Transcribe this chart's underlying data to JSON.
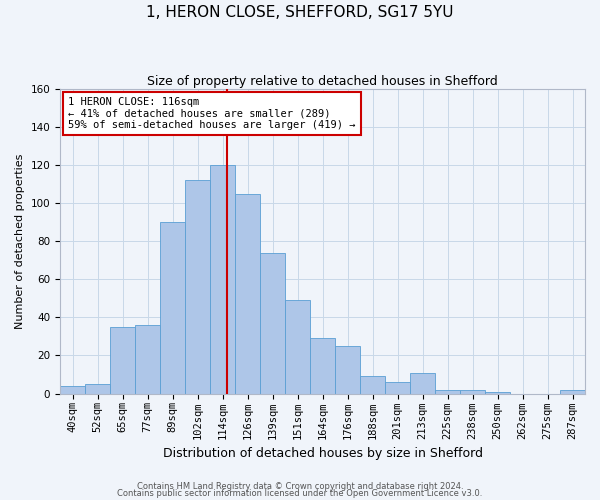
{
  "title1": "1, HERON CLOSE, SHEFFORD, SG17 5YU",
  "title2": "Size of property relative to detached houses in Shefford",
  "xlabel": "Distribution of detached houses by size in Shefford",
  "ylabel": "Number of detached properties",
  "bin_labels": [
    "40sqm",
    "52sqm",
    "65sqm",
    "77sqm",
    "89sqm",
    "102sqm",
    "114sqm",
    "126sqm",
    "139sqm",
    "151sqm",
    "164sqm",
    "176sqm",
    "188sqm",
    "201sqm",
    "213sqm",
    "225sqm",
    "238sqm",
    "250sqm",
    "262sqm",
    "275sqm",
    "287sqm"
  ],
  "bar_heights": [
    4,
    5,
    35,
    36,
    90,
    112,
    120,
    105,
    74,
    49,
    29,
    25,
    9,
    6,
    11,
    2,
    2,
    1,
    0,
    0,
    2
  ],
  "bar_color": "#aec6e8",
  "bar_edge_color": "#5a9fd4",
  "vline_color": "#cc0000",
  "annotation_text": "1 HERON CLOSE: 116sqm\n← 41% of detached houses are smaller (289)\n59% of semi-detached houses are larger (419) →",
  "annotation_box_color": "#ffffff",
  "annotation_box_edge_color": "#cc0000",
  "grid_color": "#c8d8e8",
  "background_color": "#f0f4fa",
  "footer1": "Contains HM Land Registry data © Crown copyright and database right 2024.",
  "footer2": "Contains public sector information licensed under the Open Government Licence v3.0.",
  "ylim": [
    0,
    160
  ],
  "yticks": [
    0,
    20,
    40,
    60,
    80,
    100,
    120,
    140,
    160
  ],
  "title1_fontsize": 11,
  "title2_fontsize": 9,
  "xlabel_fontsize": 9,
  "ylabel_fontsize": 8,
  "tick_fontsize": 7.5,
  "footer_fontsize": 6,
  "annot_fontsize": 7.5
}
